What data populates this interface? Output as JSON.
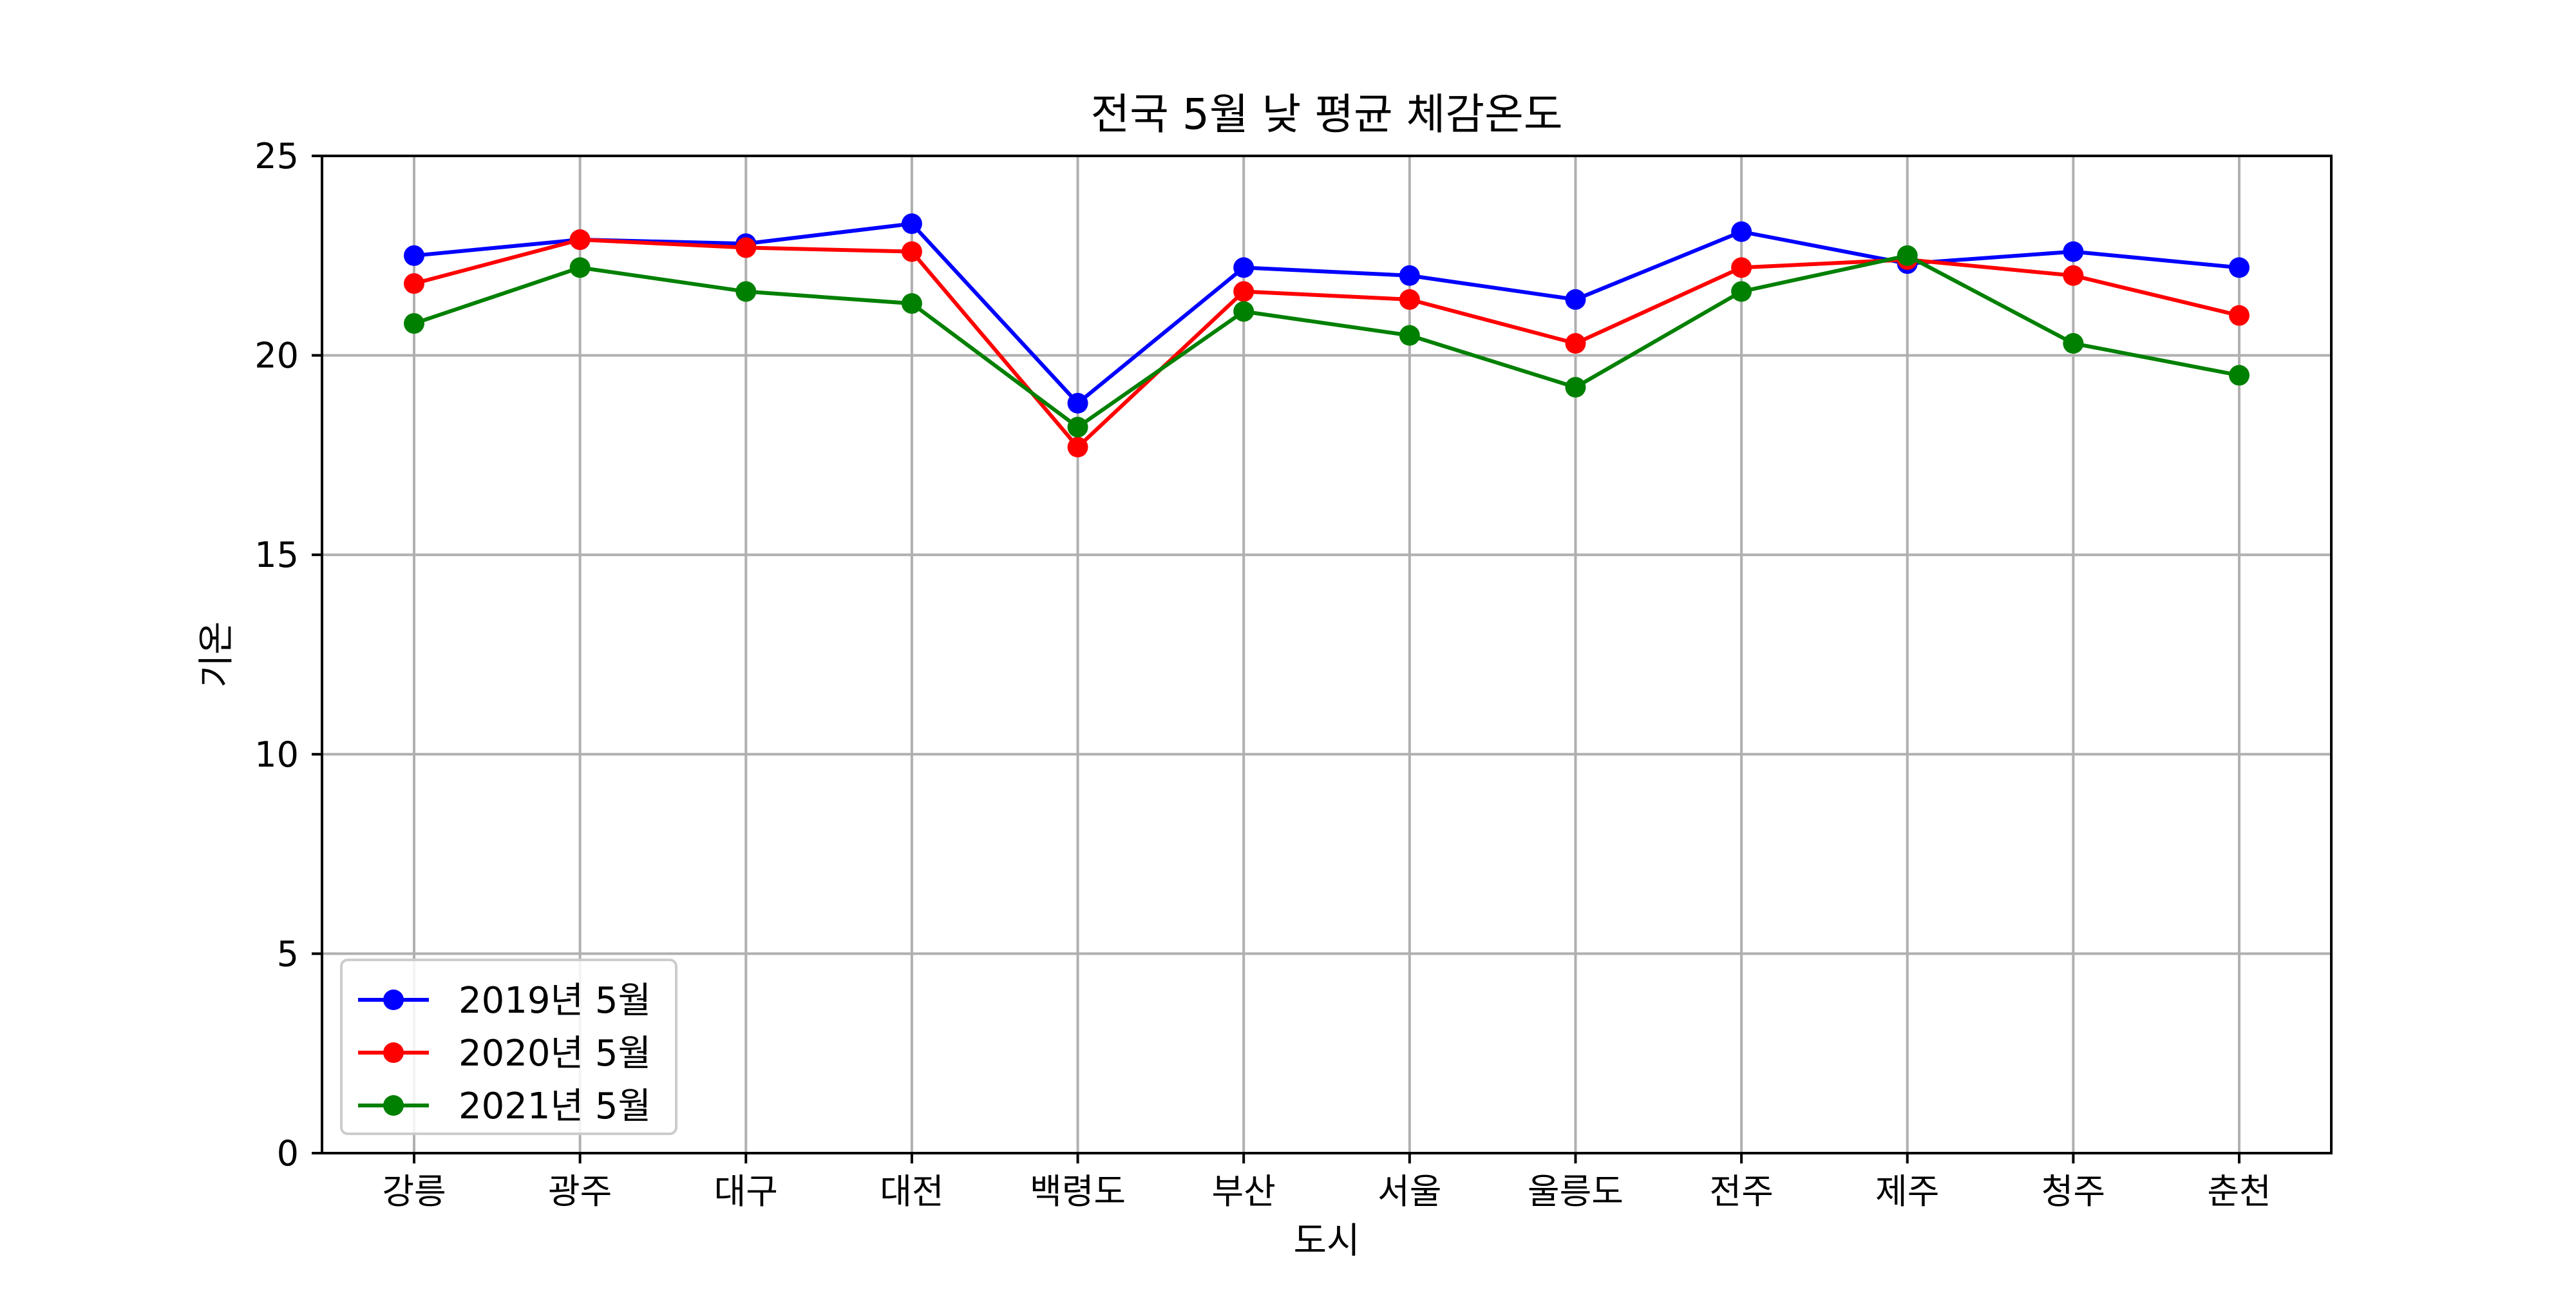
{
  "chart_data": {
    "type": "line",
    "title": "전국 5월 낮 평균 체감온도",
    "xlabel": "도시",
    "ylabel": "기온",
    "categories": [
      "강릉",
      "광주",
      "대구",
      "대전",
      "백령도",
      "부산",
      "서울",
      "울릉도",
      "전주",
      "제주",
      "청주",
      "춘천"
    ],
    "ylim": [
      0,
      25
    ],
    "yticks": [
      "0",
      "5",
      "10",
      "15",
      "20",
      "25"
    ],
    "grid": true,
    "legend_position": "lower-left",
    "series": [
      {
        "name": "2019년 5월",
        "color": "#0000ff",
        "marker": "circle",
        "values": [
          22.5,
          22.9,
          22.8,
          23.3,
          18.8,
          22.2,
          22.0,
          21.4,
          23.1,
          22.3,
          22.6,
          22.2
        ]
      },
      {
        "name": "2020년 5월",
        "color": "#ff0000",
        "marker": "circle",
        "values": [
          21.8,
          22.9,
          22.7,
          22.6,
          17.7,
          21.6,
          21.4,
          20.3,
          22.2,
          22.4,
          22.0,
          21.0
        ]
      },
      {
        "name": "2021년 5월",
        "color": "#008000",
        "marker": "circle",
        "values": [
          20.8,
          22.2,
          21.6,
          21.3,
          18.2,
          21.1,
          20.5,
          19.2,
          21.6,
          22.5,
          20.3,
          19.5
        ]
      }
    ]
  }
}
